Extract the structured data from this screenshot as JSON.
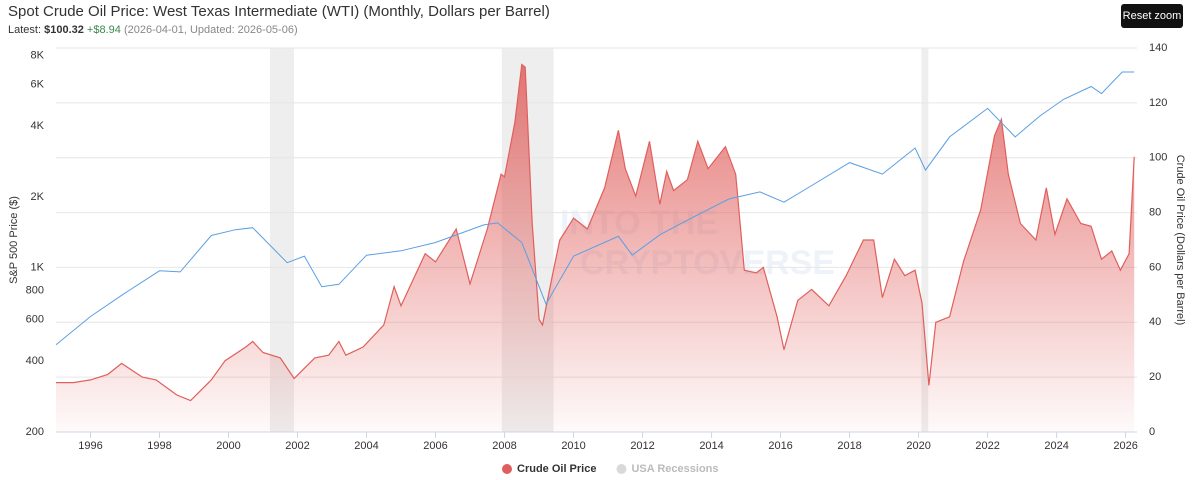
{
  "reset_zoom_button": "Reset zoom",
  "chart_data": {
    "type": "line",
    "title": "Spot Crude Oil Price: West Texas Intermediate (WTI) (Monthly, Dollars per Barrel)",
    "latest": {
      "label": "Latest:",
      "value": "$100.32",
      "change": "+$8.94",
      "date": "(2026-04-01, Updated: 2026-05-06)"
    },
    "watermark": [
      "INTO THE",
      "CRYPTOVERSE"
    ],
    "y_label": "S&P 500 Price ($)",
    "y2_label": "Crude Oil Price (Dollars per Barrel)",
    "xlim": [
      1995,
      2026.33
    ],
    "xticks": [
      1996,
      1998,
      2000,
      2002,
      2004,
      2006,
      2008,
      2010,
      2012,
      2014,
      2016,
      2018,
      2020,
      2022,
      2024,
      2026
    ],
    "ylim": [
      200,
      8600
    ],
    "y_log": true,
    "yticks": [
      200,
      400,
      600,
      800,
      {
        "value": 1000,
        "label": "1K"
      },
      {
        "value": 2000,
        "label": "2K"
      },
      {
        "value": 4000,
        "label": "4K"
      },
      {
        "value": 6000,
        "label": "6K"
      },
      {
        "value": 8000,
        "label": "8K"
      }
    ],
    "y2lim": [
      0,
      140
    ],
    "y2ticks": [
      0,
      20,
      40,
      60,
      80,
      100,
      120,
      140
    ],
    "grid": "y2",
    "legend": "bottom",
    "recessions": {
      "name": "USA Recessions",
      "color": "#d9d9d9",
      "periods": [
        [
          2001.2,
          2001.9
        ],
        [
          2007.92,
          2009.42
        ],
        [
          2020.08,
          2020.28
        ]
      ]
    },
    "series": [
      {
        "name": "Crude Oil Price",
        "color": "#e05f5c",
        "axis": "y2",
        "style": "area",
        "x": [
          1995.0,
          1995.5,
          1996.0,
          1996.5,
          1996.9,
          1997.5,
          1997.9,
          1998.5,
          1998.9,
          1999.5,
          1999.9,
          2000.5,
          2000.7,
          2001.0,
          2001.5,
          2001.9,
          2002.5,
          2002.9,
          2003.2,
          2003.4,
          2003.9,
          2004.5,
          2004.8,
          2005.0,
          2005.7,
          2006.0,
          2006.6,
          2006.9,
          2007.0,
          2007.5,
          2007.9,
          2008.0,
          2008.3,
          2008.5,
          2008.6,
          2008.8,
          2009.0,
          2009.1,
          2009.4,
          2009.6,
          2010.0,
          2010.4,
          2010.9,
          2011.3,
          2011.5,
          2011.8,
          2012.2,
          2012.5,
          2012.7,
          2012.9,
          2013.3,
          2013.6,
          2013.9,
          2014.4,
          2014.7,
          2014.95,
          2015.3,
          2015.5,
          2015.9,
          2016.1,
          2016.5,
          2016.9,
          2017.4,
          2017.9,
          2018.4,
          2018.7,
          2018.95,
          2019.3,
          2019.6,
          2019.9,
          2020.1,
          2020.3,
          2020.5,
          2020.9,
          2021.3,
          2021.8,
          2022.2,
          2022.4,
          2022.6,
          2022.95,
          2023.4,
          2023.7,
          2023.95,
          2024.3,
          2024.7,
          2025.0,
          2025.3,
          2025.6,
          2025.85,
          2026.1,
          2026.25
        ],
        "values": [
          18,
          18,
          19,
          21,
          25,
          20,
          19,
          13.5,
          11.5,
          19,
          26,
          31,
          33,
          29,
          27,
          19.5,
          27,
          28,
          33,
          28,
          31,
          39,
          53,
          46,
          65,
          62,
          74,
          59,
          54,
          74,
          94,
          93,
          113,
          134,
          133,
          76,
          41,
          39,
          58,
          70,
          78,
          74,
          89,
          110,
          96,
          86,
          106,
          83,
          95,
          88,
          92,
          106,
          96,
          104,
          94,
          59,
          58,
          60,
          42,
          30,
          48,
          52,
          46,
          57,
          70,
          70,
          49,
          63,
          57,
          59,
          47,
          17,
          40,
          42,
          62,
          81,
          108,
          114,
          94,
          76,
          70,
          89,
          72,
          85,
          76,
          75,
          63,
          66,
          59,
          65,
          100.32
        ]
      },
      {
        "color": "#5b9fe3",
        "axis": "y",
        "style": "line",
        "x": [
          1995.0,
          1996.0,
          1997.0,
          1998.0,
          1998.6,
          1999.5,
          2000.2,
          2000.7,
          2001.7,
          2002.2,
          2002.7,
          2003.2,
          2004.0,
          2005.0,
          2006.0,
          2007.4,
          2007.8,
          2008.5,
          2009.2,
          2010.0,
          2011.3,
          2011.7,
          2012.5,
          2013.5,
          2014.5,
          2015.4,
          2016.1,
          2017.0,
          2018.0,
          2018.95,
          2019.9,
          2020.2,
          2020.9,
          2022.0,
          2022.8,
          2023.5,
          2024.2,
          2025.0,
          2025.3,
          2025.9,
          2026.25
        ],
        "values": [
          470,
          620,
          780,
          970,
          960,
          1370,
          1450,
          1480,
          1050,
          1120,
          830,
          850,
          1130,
          1180,
          1280,
          1520,
          1550,
          1280,
          700,
          1120,
          1360,
          1130,
          1380,
          1650,
          1960,
          2100,
          1900,
          2280,
          2800,
          2500,
          3230,
          2600,
          3600,
          4760,
          3600,
          4400,
          5200,
          5900,
          5500,
          6800,
          6800
        ]
      }
    ]
  }
}
